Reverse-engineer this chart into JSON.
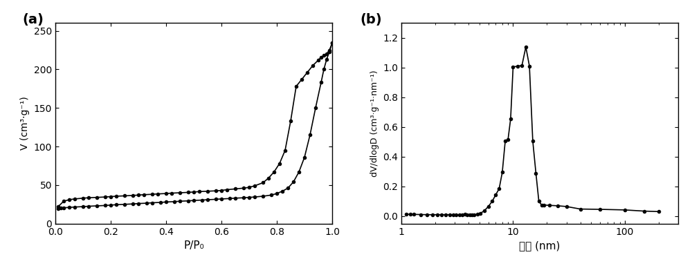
{
  "panel_a_label": "(a)",
  "panel_b_label": "(b)",
  "panel_a_xlabel": "P/P₀",
  "panel_a_ylabel": "V (cm³·g⁻¹)",
  "panel_b_xlabel": "孔径 (nm)",
  "panel_b_ylabel": "dV/dlogD (cm³·g⁻¹·nm⁻¹)",
  "adsorption_x": [
    0.01,
    0.02,
    0.03,
    0.05,
    0.07,
    0.1,
    0.12,
    0.15,
    0.18,
    0.2,
    0.22,
    0.25,
    0.28,
    0.3,
    0.33,
    0.35,
    0.38,
    0.4,
    0.43,
    0.45,
    0.48,
    0.5,
    0.53,
    0.55,
    0.58,
    0.6,
    0.63,
    0.65,
    0.68,
    0.7,
    0.72,
    0.75,
    0.78,
    0.8,
    0.82,
    0.84,
    0.86,
    0.88,
    0.9,
    0.92,
    0.94,
    0.96,
    0.97,
    0.98,
    0.99,
    1.0
  ],
  "adsorption_y": [
    19,
    20,
    20.5,
    21,
    21.5,
    22,
    22.5,
    23,
    23.5,
    24,
    24.5,
    25,
    25.5,
    26,
    26.5,
    27,
    27.5,
    28,
    28.5,
    29,
    29.5,
    30,
    30.5,
    31,
    31.5,
    32,
    32.5,
    33,
    33.5,
    34,
    34.5,
    35.5,
    37,
    39,
    42,
    46,
    54,
    67,
    86,
    115,
    150,
    183,
    200,
    213,
    223,
    234
  ],
  "desorption_x": [
    1.0,
    0.99,
    0.98,
    0.97,
    0.96,
    0.95,
    0.93,
    0.91,
    0.89,
    0.87,
    0.85,
    0.83,
    0.81,
    0.79,
    0.77,
    0.75,
    0.72,
    0.7,
    0.68,
    0.65,
    0.62,
    0.6,
    0.58,
    0.55,
    0.52,
    0.5,
    0.48,
    0.45,
    0.42,
    0.4,
    0.37,
    0.35,
    0.32,
    0.3,
    0.28,
    0.25,
    0.22,
    0.2,
    0.18,
    0.15,
    0.12,
    0.1,
    0.07,
    0.05,
    0.03,
    0.01
  ],
  "desorption_y": [
    234,
    225,
    220,
    218,
    216,
    212,
    205,
    196,
    187,
    178,
    133,
    95,
    78,
    67,
    59,
    53,
    49,
    47,
    46,
    45,
    44,
    43,
    42.5,
    42,
    41.5,
    41,
    40.5,
    40,
    39.5,
    39,
    38.5,
    38,
    37.5,
    37,
    36.5,
    36,
    35.5,
    35,
    34.5,
    34,
    33.5,
    33,
    32,
    31,
    29,
    22
  ],
  "pore_x": [
    1.1,
    1.2,
    1.3,
    1.5,
    1.7,
    1.9,
    2.1,
    2.3,
    2.5,
    2.7,
    2.9,
    3.1,
    3.3,
    3.5,
    3.7,
    3.9,
    4.1,
    4.3,
    4.5,
    4.8,
    5.1,
    5.5,
    6.0,
    6.5,
    7.0,
    7.5,
    8.0,
    8.5,
    9.0,
    9.5,
    10.0,
    11.0,
    12.0,
    13.0,
    14.0,
    15.0,
    16.0,
    17.0,
    18.0,
    19.0,
    21.0,
    25.0,
    30.0,
    40.0,
    60.0,
    100.0,
    150.0,
    200.0
  ],
  "pore_y": [
    0.013,
    0.013,
    0.012,
    0.011,
    0.01,
    0.01,
    0.01,
    0.01,
    0.01,
    0.01,
    0.01,
    0.009,
    0.01,
    0.011,
    0.012,
    0.01,
    0.009,
    0.008,
    0.01,
    0.013,
    0.02,
    0.035,
    0.065,
    0.1,
    0.145,
    0.185,
    0.295,
    0.505,
    0.515,
    0.655,
    1.005,
    1.01,
    1.015,
    1.14,
    1.01,
    0.505,
    0.29,
    0.1,
    0.075,
    0.075,
    0.073,
    0.07,
    0.065,
    0.048,
    0.046,
    0.042,
    0.034,
    0.031
  ],
  "color": "black",
  "marker": "o",
  "markersize": 3,
  "linewidth": 1.2,
  "fig_width": 10.0,
  "fig_height": 3.72,
  "ylim_a": [
    0,
    260
  ],
  "yticks_a": [
    0,
    50,
    100,
    150,
    200,
    250
  ],
  "xlim_a": [
    0.0,
    1.0
  ],
  "xticks_a": [
    0.0,
    0.2,
    0.4,
    0.6,
    0.8,
    1.0
  ],
  "ylim_b": [
    -0.05,
    1.3
  ],
  "yticks_b": [
    0.0,
    0.2,
    0.4,
    0.6,
    0.8,
    1.0,
    1.2
  ],
  "xlim_b_log": [
    1,
    300
  ],
  "background_color": "#ffffff"
}
